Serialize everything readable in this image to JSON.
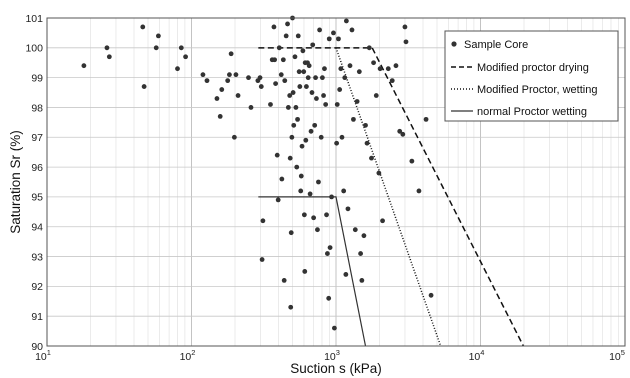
{
  "chart_data": {
    "type": "scatter",
    "title": "",
    "xlabel": "Suction s (kPa)",
    "ylabel": "Saturation Sr (%)",
    "xscale": "log",
    "xlim": [
      10,
      100000
    ],
    "ylim": [
      90,
      101
    ],
    "x_tick_labels": [
      {
        "value": 10,
        "base": "10",
        "exp": "1"
      },
      {
        "value": 100,
        "base": "10",
        "exp": "2"
      },
      {
        "value": 1000,
        "base": "10",
        "exp": "3"
      },
      {
        "value": 10000,
        "base": "10",
        "exp": "4"
      },
      {
        "value": 100000,
        "base": "10",
        "exp": "5"
      }
    ],
    "y_ticks": [
      90,
      91,
      92,
      93,
      94,
      95,
      96,
      97,
      98,
      99,
      100,
      101
    ],
    "grid": true,
    "legend_position": "top-right",
    "series": [
      {
        "name": "Sample Core",
        "style": "marker",
        "color": "#333333",
        "points": [
          [
            18,
            99.4
          ],
          [
            26,
            100.0
          ],
          [
            27,
            99.7
          ],
          [
            46,
            100.7
          ],
          [
            47,
            98.7
          ],
          [
            57,
            100.0
          ],
          [
            59,
            100.4
          ],
          [
            80,
            99.3
          ],
          [
            85,
            100.0
          ],
          [
            91,
            99.7
          ],
          [
            120,
            99.1
          ],
          [
            128,
            98.9
          ],
          [
            150,
            98.3
          ],
          [
            158,
            97.7
          ],
          [
            162,
            98.6
          ],
          [
            178,
            98.9
          ],
          [
            183,
            99.1
          ],
          [
            188,
            99.8
          ],
          [
            198,
            97.0
          ],
          [
            203,
            99.1
          ],
          [
            210,
            98.4
          ],
          [
            248,
            99.0
          ],
          [
            258,
            98.0
          ],
          [
            288,
            98.9
          ],
          [
            298,
            99.0
          ],
          [
            304,
            98.7
          ],
          [
            308,
            92.9
          ],
          [
            312,
            94.2
          ],
          [
            352,
            98.1
          ],
          [
            362,
            99.6
          ],
          [
            372,
            100.7
          ],
          [
            376,
            99.6
          ],
          [
            382,
            98.8
          ],
          [
            392,
            96.4
          ],
          [
            398,
            94.9
          ],
          [
            405,
            100.0
          ],
          [
            418,
            99.1
          ],
          [
            422,
            95.6
          ],
          [
            432,
            99.6
          ],
          [
            438,
            92.2
          ],
          [
            442,
            98.9
          ],
          [
            452,
            100.4
          ],
          [
            462,
            100.8
          ],
          [
            468,
            98.0
          ],
          [
            478,
            98.4
          ],
          [
            482,
            96.3
          ],
          [
            486,
            91.3
          ],
          [
            490,
            93.8
          ],
          [
            495,
            97.0
          ],
          [
            500,
            101.0
          ],
          [
            505,
            98.5
          ],
          [
            510,
            97.4
          ],
          [
            520,
            99.7
          ],
          [
            528,
            98.0
          ],
          [
            535,
            96.0
          ],
          [
            542,
            97.6
          ],
          [
            548,
            100.4
          ],
          [
            556,
            99.2
          ],
          [
            562,
            98.7
          ],
          [
            570,
            95.2
          ],
          [
            575,
            95.7
          ],
          [
            582,
            96.7
          ],
          [
            590,
            99.9
          ],
          [
            598,
            99.2
          ],
          [
            604,
            94.4
          ],
          [
            608,
            92.5
          ],
          [
            612,
            99.5
          ],
          [
            618,
            96.9
          ],
          [
            624,
            98.7
          ],
          [
            635,
            99.5
          ],
          [
            642,
            99.0
          ],
          [
            652,
            99.4
          ],
          [
            662,
            95.1
          ],
          [
            672,
            97.2
          ],
          [
            682,
            98.5
          ],
          [
            690,
            100.1
          ],
          [
            700,
            94.3
          ],
          [
            712,
            97.4
          ],
          [
            722,
            99.0
          ],
          [
            732,
            98.3
          ],
          [
            744,
            93.9
          ],
          [
            756,
            95.5
          ],
          [
            770,
            100.6
          ],
          [
            790,
            97.0
          ],
          [
            805,
            99.0
          ],
          [
            820,
            98.4
          ],
          [
            832,
            99.3
          ],
          [
            848,
            98.1
          ],
          [
            860,
            94.4
          ],
          [
            872,
            93.1
          ],
          [
            890,
            91.6
          ],
          [
            898,
            100.3
          ],
          [
            910,
            93.3
          ],
          [
            932,
            95.0
          ],
          [
            960,
            100.5
          ],
          [
            975,
            90.6
          ],
          [
            1010,
            96.8
          ],
          [
            1020,
            98.1
          ],
          [
            1040,
            100.3
          ],
          [
            1060,
            98.6
          ],
          [
            1080,
            99.3
          ],
          [
            1100,
            97.0
          ],
          [
            1130,
            95.2
          ],
          [
            1150,
            99.0
          ],
          [
            1170,
            92.4
          ],
          [
            1180,
            100.9
          ],
          [
            1210,
            94.6
          ],
          [
            1250,
            99.4
          ],
          [
            1290,
            100.6
          ],
          [
            1320,
            97.6
          ],
          [
            1360,
            93.9
          ],
          [
            1400,
            98.2
          ],
          [
            1450,
            99.2
          ],
          [
            1480,
            93.1
          ],
          [
            1510,
            92.2
          ],
          [
            1560,
            93.7
          ],
          [
            1600,
            97.4
          ],
          [
            1640,
            96.8
          ],
          [
            1700,
            100.0
          ],
          [
            1760,
            96.3
          ],
          [
            1820,
            99.5
          ],
          [
            1900,
            98.4
          ],
          [
            1980,
            95.8
          ],
          [
            2020,
            99.3
          ],
          [
            2100,
            94.2
          ],
          [
            2300,
            99.3
          ],
          [
            2450,
            98.9
          ],
          [
            2600,
            99.4
          ],
          [
            2760,
            97.2
          ],
          [
            2900,
            97.1
          ],
          [
            3000,
            100.7
          ],
          [
            3050,
            100.2
          ],
          [
            3350,
            96.2
          ],
          [
            3750,
            95.2
          ],
          [
            4200,
            97.6
          ],
          [
            4550,
            91.7
          ]
        ]
      },
      {
        "name": "Modified proctor drying",
        "style": "dashed",
        "color": "#111111",
        "points": [
          [
            290,
            100.0
          ],
          [
            1780,
            100.0
          ],
          [
            19800,
            90.0
          ]
        ]
      },
      {
        "name": "Modified Proctor, wetting",
        "style": "dotted",
        "color": "#111111",
        "points": [
          [
            1000,
            100.0
          ],
          [
            5300,
            90.0
          ]
        ]
      },
      {
        "name": "normal Proctor wetting",
        "style": "solid",
        "color": "#333333",
        "points": [
          [
            290,
            95.0
          ],
          [
            1000,
            95.0
          ],
          [
            1600,
            90.0
          ]
        ]
      }
    ]
  }
}
